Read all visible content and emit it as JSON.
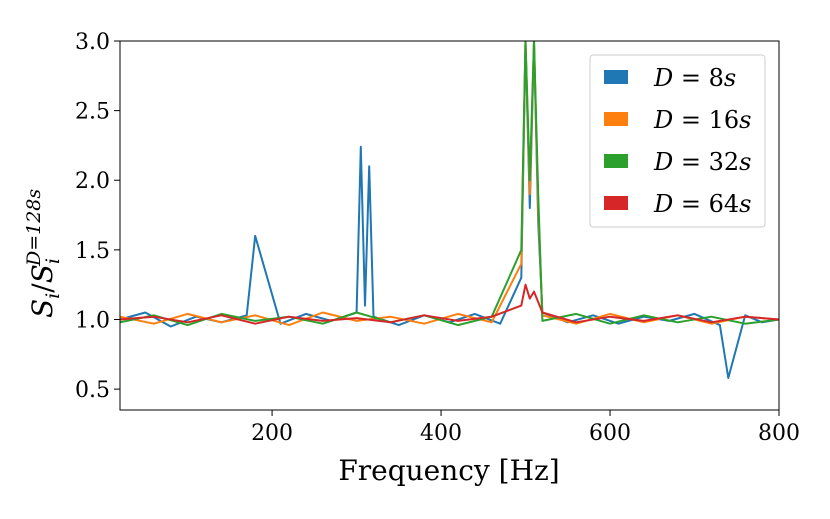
{
  "chart_data": {
    "type": "line",
    "xlabel": "Frequency [Hz]",
    "ylabel": {
      "main": "S",
      "sub": "i",
      "slash": "/",
      "main2": "S",
      "sub2": "i",
      "sup2": "D=128s"
    },
    "xlim": [
      20,
      800
    ],
    "ylim": [
      0.35,
      3.0
    ],
    "xticks": [
      200,
      400,
      600,
      800
    ],
    "xtick_labels": [
      "200",
      "400",
      "600",
      "800"
    ],
    "yticks": [
      0.5,
      1.0,
      1.5,
      2.0,
      2.5,
      3.0
    ],
    "ytick_labels": [
      "0.5",
      "1.0",
      "1.5",
      "2.0",
      "2.5",
      "3.0"
    ],
    "grid": false,
    "legend_position": "top-right",
    "series": [
      {
        "name": "D = 8s",
        "var": "D",
        "eq": " = ",
        "value": "8",
        "unit": "s",
        "color": "#1f77b4",
        "x": [
          20,
          50,
          80,
          110,
          140,
          170,
          180,
          210,
          240,
          270,
          300,
          305,
          310,
          315,
          320,
          350,
          380,
          410,
          440,
          470,
          495,
          500,
          505,
          510,
          515,
          520,
          550,
          580,
          610,
          640,
          670,
          700,
          730,
          740,
          760,
          780,
          800
        ],
        "y": [
          1.0,
          1.05,
          0.95,
          1.02,
          0.98,
          1.03,
          1.6,
          0.97,
          1.04,
          0.99,
          1.05,
          2.24,
          1.1,
          2.1,
          1.02,
          0.96,
          1.03,
          0.98,
          1.04,
          0.97,
          1.3,
          3.0,
          1.8,
          3.0,
          1.7,
          1.05,
          0.98,
          1.03,
          0.97,
          1.02,
          0.99,
          1.04,
          0.96,
          0.58,
          1.03,
          0.98,
          1.0
        ]
      },
      {
        "name": "D = 16s",
        "var": "D",
        "eq": " = ",
        "value": "16",
        "unit": "s",
        "color": "#ff7f0e",
        "x": [
          20,
          60,
          100,
          140,
          180,
          220,
          260,
          300,
          340,
          380,
          420,
          460,
          495,
          500,
          505,
          510,
          515,
          520,
          560,
          600,
          640,
          680,
          720,
          760,
          800
        ],
        "y": [
          1.02,
          0.97,
          1.04,
          0.98,
          1.03,
          0.96,
          1.05,
          0.99,
          1.02,
          0.97,
          1.04,
          0.98,
          1.4,
          3.0,
          1.9,
          3.0,
          1.8,
          1.03,
          0.97,
          1.04,
          0.98,
          1.03,
          0.97,
          1.02,
          1.0
        ]
      },
      {
        "name": "D = 32s",
        "var": "D",
        "eq": " = ",
        "value": "32",
        "unit": "s",
        "color": "#2ca02c",
        "x": [
          20,
          60,
          100,
          140,
          180,
          220,
          260,
          300,
          340,
          380,
          420,
          460,
          495,
          500,
          505,
          510,
          515,
          520,
          560,
          600,
          640,
          680,
          720,
          760,
          800
        ],
        "y": [
          0.98,
          1.03,
          0.96,
          1.04,
          0.99,
          1.02,
          0.97,
          1.05,
          0.98,
          1.03,
          0.96,
          1.02,
          1.5,
          3.0,
          2.0,
          3.0,
          1.9,
          0.99,
          1.04,
          0.97,
          1.03,
          0.98,
          1.02,
          0.97,
          1.0
        ]
      },
      {
        "name": "D = 64s",
        "var": "D",
        "eq": " = ",
        "value": "64",
        "unit": "s",
        "color": "#d62728",
        "x": [
          20,
          60,
          100,
          140,
          180,
          220,
          260,
          300,
          340,
          380,
          420,
          460,
          495,
          500,
          505,
          510,
          520,
          560,
          600,
          640,
          680,
          720,
          760,
          800
        ],
        "y": [
          1.0,
          1.02,
          0.98,
          1.03,
          0.97,
          1.02,
          0.99,
          1.01,
          0.98,
          1.03,
          0.99,
          1.02,
          1.1,
          1.25,
          1.15,
          1.2,
          1.05,
          0.98,
          1.02,
          0.99,
          1.03,
          0.98,
          1.02,
          1.0
        ]
      }
    ]
  }
}
